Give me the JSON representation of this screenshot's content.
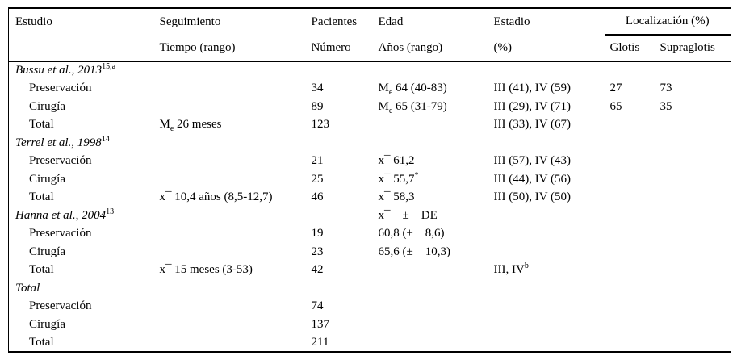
{
  "page": {
    "background_color": "#ffffff",
    "text_color": "#000000",
    "rule_color": "#000000"
  },
  "table": {
    "header": {
      "estudio": "Estudio",
      "seguimiento": "Seguimiento",
      "pacientes": "Pacientes",
      "edad": "Edad",
      "estadio": "Estadio",
      "localizacion": "Localización (%)",
      "estudio_sub": "",
      "tiempo": "Tiempo (rango)",
      "numero": "Número",
      "anos": "Años (rango)",
      "estadio_pct": "(%)",
      "glotis": "Glotis",
      "supraglotis": "Supraglotis"
    },
    "rows": [
      {
        "type": "section",
        "cells": [
          "Bussu et al., 2013^15,a^",
          "",
          "",
          "",
          "",
          "",
          ""
        ]
      },
      {
        "type": "data",
        "cells": [
          "Preservación",
          "",
          "34",
          "M~e~ 64 (40-83)",
          "III (41), IV (59)",
          "27",
          "73"
        ]
      },
      {
        "type": "data",
        "cells": [
          "Cirugía",
          "",
          "89",
          "M~e~ 65 (31-79)",
          "III (29), IV (71)",
          "65",
          "35"
        ]
      },
      {
        "type": "data",
        "cells": [
          "Total",
          "M~e~ 26 meses",
          "123",
          "",
          "III (33), IV (67)",
          "",
          ""
        ]
      },
      {
        "type": "section",
        "cells": [
          "Terrel et al., 1998^14^",
          "",
          "",
          "",
          "",
          "",
          ""
        ]
      },
      {
        "type": "data",
        "cells": [
          "Preservación",
          "",
          "21",
          "x¯ 61,2",
          "III (57), IV (43)",
          "",
          ""
        ]
      },
      {
        "type": "data",
        "cells": [
          "Cirugía",
          "",
          "25",
          "x¯ 55,7^*^",
          "III (44), IV (56)",
          "",
          ""
        ]
      },
      {
        "type": "data",
        "cells": [
          "Total",
          "x¯ 10,4 años (8,5-12,7)",
          "46",
          "x¯ 58,3",
          "III (50), IV (50)",
          "",
          ""
        ]
      },
      {
        "type": "section",
        "cells": [
          "Hanna et al., 2004^13^",
          "",
          "",
          "x¯    ±    DE",
          "",
          "",
          ""
        ]
      },
      {
        "type": "data",
        "cells": [
          "Preservación",
          "",
          "19",
          "60,8 (±    8,6)",
          "",
          "",
          ""
        ]
      },
      {
        "type": "data",
        "cells": [
          "Cirugía",
          "",
          "23",
          "65,6 (±    10,3)",
          "",
          "",
          ""
        ]
      },
      {
        "type": "data",
        "cells": [
          "Total",
          "x¯ 15 meses (3-53)",
          "42",
          "",
          "III, IV^b^",
          "",
          ""
        ]
      },
      {
        "type": "section",
        "cells": [
          "Total",
          "",
          "",
          "",
          "",
          "",
          ""
        ]
      },
      {
        "type": "data",
        "cells": [
          "Preservación",
          "",
          "74",
          "",
          "",
          "",
          ""
        ]
      },
      {
        "type": "data",
        "cells": [
          "Cirugía",
          "",
          "137",
          "",
          "",
          "",
          ""
        ]
      },
      {
        "type": "data",
        "cells": [
          "Total",
          "",
          "211",
          "",
          "",
          "",
          ""
        ]
      }
    ]
  }
}
